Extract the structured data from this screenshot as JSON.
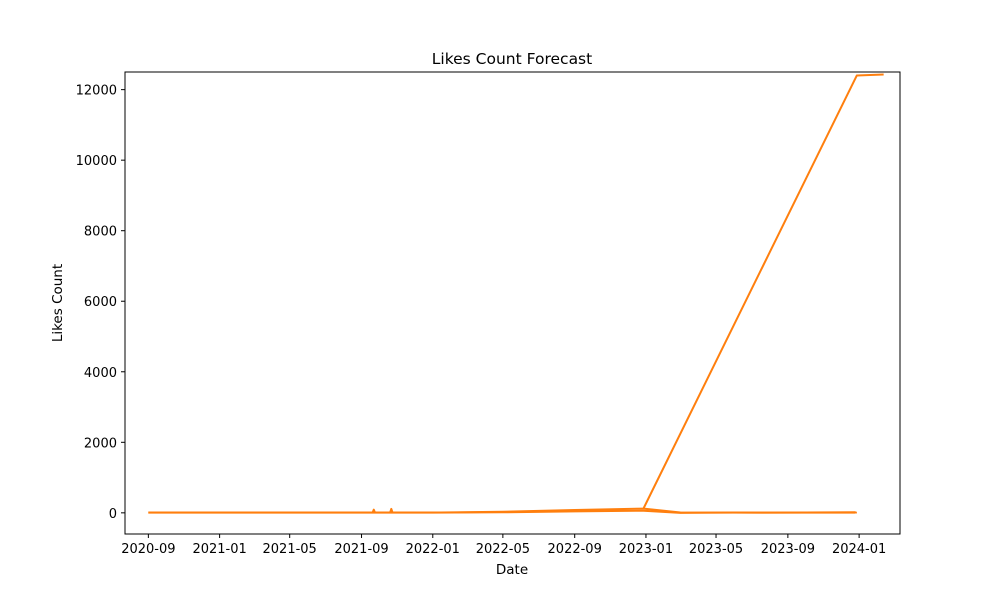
{
  "chart_data": {
    "type": "line",
    "title": "Likes Count Forecast",
    "xlabel": "Date",
    "ylabel": "Likes Count",
    "xlim": [
      "2020-07-23",
      "2024-03-11"
    ],
    "ylim": [
      -600,
      12500
    ],
    "x_ticks": [
      "2020-09",
      "2021-01",
      "2021-05",
      "2021-09",
      "2022-01",
      "2022-05",
      "2022-09",
      "2023-01",
      "2023-05",
      "2023-09",
      "2024-01"
    ],
    "y_ticks": [
      0,
      2000,
      4000,
      6000,
      8000,
      10000,
      12000
    ],
    "grid": false,
    "line_color": "#ff7f0e",
    "series": [
      {
        "x": [
          "2020-09-01",
          "2021-01-01",
          "2021-05-01",
          "2021-09-01",
          "2021-09-20",
          "2021-09-22",
          "2021-09-24",
          "2021-10-15",
          "2021-10-20",
          "2021-10-22",
          "2021-10-24",
          "2021-11-15",
          "2022-01-15",
          "2022-05-01",
          "2022-09-01",
          "2022-12-28",
          "2023-03-01",
          "2023-07-01",
          "2023-10-01",
          "2023-12-25",
          "2023-12-28"
        ],
        "y": [
          10,
          10,
          10,
          10,
          10,
          90,
          10,
          10,
          10,
          110,
          10,
          10,
          10,
          30,
          80,
          120,
          10,
          5,
          10,
          15,
          0
        ]
      },
      {
        "x": [
          "2020-09-01",
          "2021-09-01",
          "2022-01-01",
          "2022-05-01",
          "2022-09-01",
          "2022-12-28",
          "2023-03-01",
          "2023-06-01",
          "2023-09-01",
          "2023-12-25"
        ],
        "y": [
          5,
          5,
          5,
          15,
          40,
          60,
          0,
          10,
          5,
          5
        ]
      },
      {
        "x": [
          "2022-12-28",
          "2023-12-28",
          "2024-02-12"
        ],
        "y": [
          130,
          12400,
          12430
        ]
      }
    ]
  }
}
